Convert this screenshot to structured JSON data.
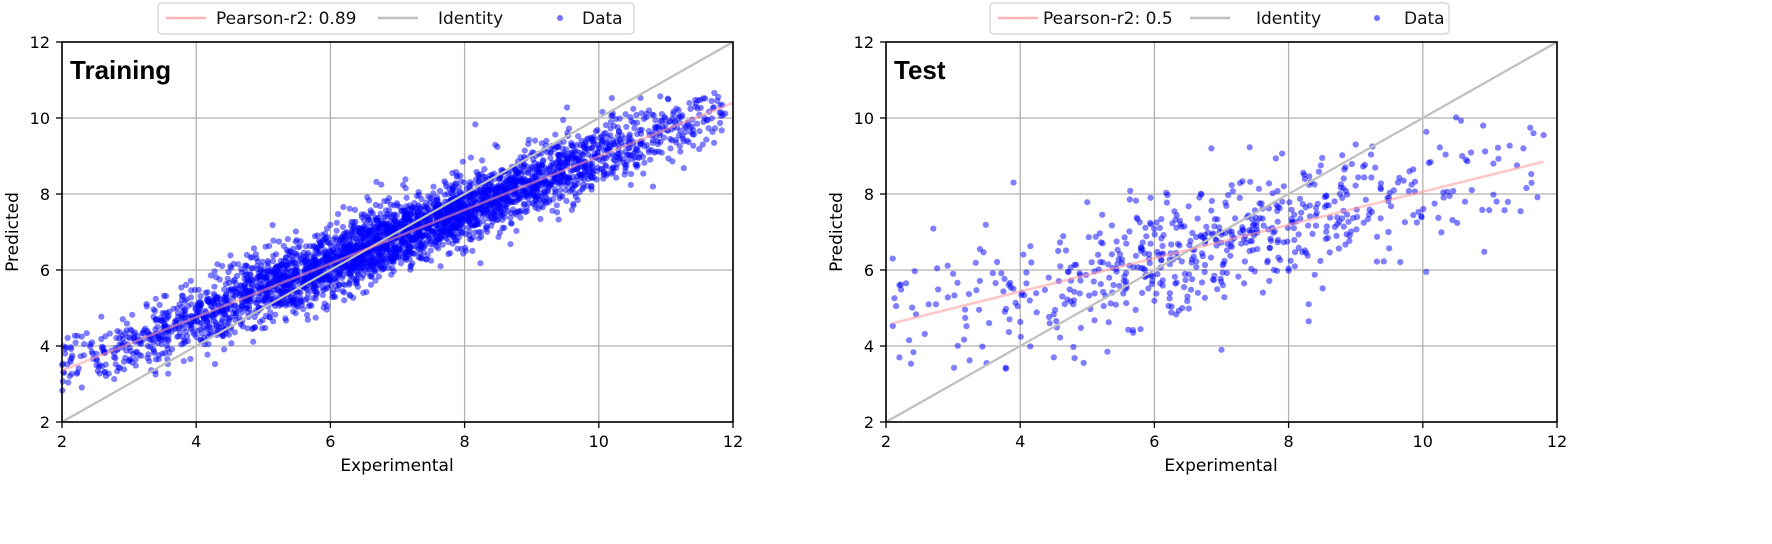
{
  "chart_data": [
    {
      "type": "scatter",
      "panel": "Training",
      "annotation": "Training",
      "xlabel": "Experimental",
      "ylabel": "Predicted",
      "xlim": [
        2,
        12
      ],
      "ylim": [
        2,
        12
      ],
      "xticks": [
        2,
        4,
        6,
        8,
        10,
        12
      ],
      "yticks": [
        2,
        4,
        6,
        8,
        10,
        12
      ],
      "grid": true,
      "legend": {
        "position": "upper center (above axes)",
        "entries": [
          {
            "label": "Pearson-r2: 0.89",
            "kind": "line",
            "color": "#ffb3b3"
          },
          {
            "label": "Identity",
            "kind": "line",
            "color": "#bfbfbf"
          },
          {
            "label": "Data",
            "kind": "marker",
            "color": "#0000ff"
          }
        ]
      },
      "series": [
        {
          "name": "Identity",
          "type": "line",
          "x": [
            2,
            12
          ],
          "y": [
            2,
            12
          ],
          "color": "#bfbfbf"
        },
        {
          "name": "Pearson-r2: 0.89",
          "type": "line",
          "x": [
            2,
            12
          ],
          "y": [
            3.35,
            10.4
          ],
          "color": "#ffb3b3"
        },
        {
          "name": "Data",
          "type": "scatter",
          "color": "#0000ff",
          "alpha": 0.5,
          "approx_count": 3500,
          "x_range": [
            2.0,
            12.0
          ],
          "fit_slope": 0.705,
          "fit_intercept": 1.94,
          "residual_sd": 0.45,
          "density_peak_x": 7.0
        }
      ]
    },
    {
      "type": "scatter",
      "panel": "Test",
      "annotation": "Test",
      "xlabel": "Experimental",
      "ylabel": "Predicted",
      "xlim": [
        2,
        12
      ],
      "ylim": [
        2,
        12
      ],
      "xticks": [
        2,
        4,
        6,
        8,
        10,
        12
      ],
      "yticks": [
        2,
        4,
        6,
        8,
        10,
        12
      ],
      "grid": true,
      "legend": {
        "position": "upper center (above axes)",
        "entries": [
          {
            "label": "Pearson-r2: 0.5",
            "kind": "line",
            "color": "#ffb3b3"
          },
          {
            "label": "Identity",
            "kind": "line",
            "color": "#bfbfbf"
          },
          {
            "label": "Data",
            "kind": "marker",
            "color": "#0000ff"
          }
        ]
      },
      "series": [
        {
          "name": "Identity",
          "type": "line",
          "x": [
            2,
            12
          ],
          "y": [
            2,
            12
          ],
          "color": "#bfbfbf"
        },
        {
          "name": "Pearson-r2: 0.5",
          "type": "line",
          "x": [
            2.1,
            11.8
          ],
          "y": [
            4.6,
            8.85
          ],
          "color": "#ffb3b3"
        },
        {
          "name": "Data",
          "type": "scatter",
          "color": "#0000ff",
          "alpha": 0.5,
          "approx_count": 600,
          "x_range": [
            2.1,
            11.8
          ],
          "fit_slope": 0.438,
          "fit_intercept": 3.68,
          "residual_sd": 0.8,
          "density_peak_x": 6.8,
          "sample_points": [
            [
              2.1,
              6.3
            ],
            [
              2.15,
              5.05
            ],
            [
              2.2,
              5.6
            ],
            [
              2.3,
              5.65
            ],
            [
              2.2,
              3.7
            ],
            [
              3.4,
              6.55
            ],
            [
              3.0,
              5.9
            ],
            [
              3.5,
              3.55
            ],
            [
              3.9,
              8.3
            ],
            [
              5.8,
              6.5
            ],
            [
              6.85,
              9.2
            ],
            [
              8.5,
              8.95
            ],
            [
              9.25,
              9.25
            ],
            [
              10.9,
              9.8
            ],
            [
              11.65,
              9.6
            ],
            [
              11.8,
              9.55
            ],
            [
              11.5,
              9.2
            ],
            [
              10.4,
              7.95
            ],
            [
              10.05,
              5.95
            ],
            [
              11.1,
              7.8
            ],
            [
              8.3,
              4.65
            ],
            [
              7.0,
              3.9
            ],
            [
              8.3,
              5.1
            ],
            [
              5.3,
              3.85
            ],
            [
              4.5,
              3.7
            ]
          ]
        }
      ]
    }
  ],
  "panels": [
    {
      "annotation": "Training",
      "legend": [
        "Pearson-r2: 0.89",
        "Identity",
        "Data"
      ],
      "xlabel": "Experimental",
      "ylabel": "Predicted",
      "ticks": [
        "2",
        "4",
        "6",
        "8",
        "10",
        "12"
      ]
    },
    {
      "annotation": "Test",
      "legend": [
        "Pearson-r2: 0.5",
        "Identity",
        "Data"
      ],
      "xlabel": "Experimental",
      "ylabel": "Predicted",
      "ticks": [
        "2",
        "4",
        "6",
        "8",
        "10",
        "12"
      ]
    }
  ]
}
